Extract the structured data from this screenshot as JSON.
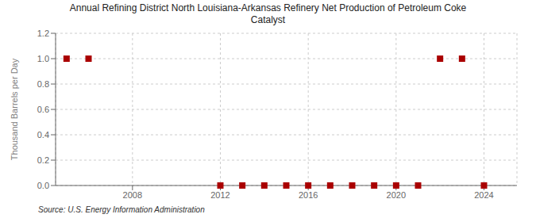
{
  "chart_data": {
    "type": "scatter",
    "title": "Annual Refining District North Louisiana-Arkansas Refinery Net Production of Petroleum Coke\nCatalyst",
    "ylabel": "Thousand Barrels per Day",
    "annotations": [
      "Source: U.S. Energy Information Administration"
    ],
    "x": [
      2005,
      2006,
      2012,
      2013,
      2014,
      2015,
      2016,
      2017,
      2018,
      2019,
      2020,
      2021,
      2022,
      2023,
      2024
    ],
    "values": [
      1.0,
      1.0,
      0.0,
      0.0,
      0.0,
      0.0,
      0.0,
      0.0,
      0.0,
      0.0,
      0.0,
      0.0,
      1.0,
      1.0,
      0.0
    ],
    "color": "#aa0000",
    "marker": "square",
    "xlim": [
      2004.5,
      2025.5
    ],
    "xticks": [
      2008,
      2012,
      2016,
      2020,
      2024
    ],
    "ylim": [
      0.0,
      1.2
    ],
    "yticks": [
      {
        "value": 0.0,
        "label": "0.0"
      },
      {
        "value": 0.2,
        "label": "0.2"
      },
      {
        "value": 0.4,
        "label": "0.4"
      },
      {
        "value": 0.6,
        "label": "0.6"
      },
      {
        "value": 0.8,
        "label": "0.8"
      },
      {
        "value": 1.0,
        "label": "1.0"
      },
      {
        "value": 1.2,
        "label": "1.2"
      }
    ],
    "grid": true
  }
}
